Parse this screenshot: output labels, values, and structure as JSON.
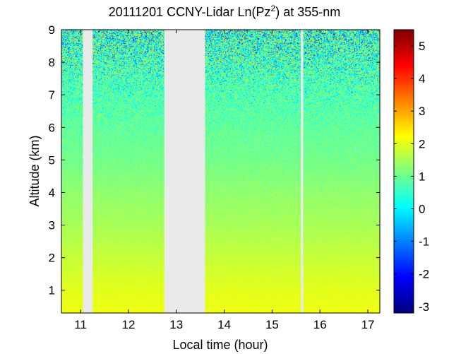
{
  "chart_data": {
    "type": "heatmap",
    "title": "20111201 CCNY-Lidar Ln(Pz",
    "title_superscript": "2",
    "title_suffix": ") at 355-nm",
    "xlabel": "Local time (hour)",
    "ylabel": "Altitude (km)",
    "xlim": [
      10.6,
      17.25
    ],
    "ylim": [
      0.3,
      9
    ],
    "xticks": [
      11,
      12,
      13,
      14,
      15,
      16,
      17
    ],
    "xtick_labels": [
      "11",
      "12",
      "13",
      "14",
      "15",
      "16",
      "17"
    ],
    "yticks": [
      1,
      2,
      3,
      4,
      5,
      6,
      7,
      8,
      9
    ],
    "ytick_labels": [
      "1",
      "2",
      "3",
      "4",
      "5",
      "6",
      "7",
      "8",
      "9"
    ],
    "colorbar": {
      "range": [
        -3.2,
        5.5
      ],
      "ticks": [
        -3,
        -2,
        -1,
        0,
        1,
        2,
        3,
        4,
        5
      ],
      "tick_labels": [
        "-3",
        "-2",
        "-1",
        "0",
        "1",
        "2",
        "3",
        "4",
        "5"
      ],
      "colormap": "jet"
    },
    "no_data_intervals": [
      [
        11.05,
        11.25
      ],
      [
        12.75,
        13.6
      ],
      [
        15.6,
        15.65
      ]
    ],
    "value_profile": {
      "altitude": [
        0.3,
        1,
        2,
        3,
        4,
        5,
        6,
        7,
        8,
        9
      ],
      "mean": [
        2.1,
        2.0,
        1.75,
        1.5,
        1.3,
        1.05,
        0.9,
        0.7,
        0.55,
        0.4
      ],
      "noise": [
        0.05,
        0.06,
        0.08,
        0.1,
        0.12,
        0.15,
        0.25,
        0.55,
        0.95,
        1.3
      ]
    },
    "grid": false
  },
  "colors": {
    "no_data": "#e9e9e9",
    "axes": "#000000",
    "background": "#ffffff"
  }
}
